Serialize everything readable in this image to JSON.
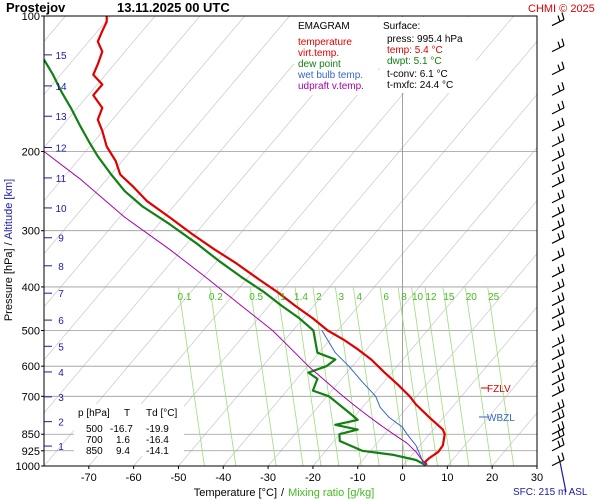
{
  "header": {
    "station": "Prostejov",
    "datetime": "13.11.2025 00 UTC",
    "credit": "CHMI © 2025"
  },
  "legend": {
    "title": "EMAGRAM",
    "items": [
      {
        "label": "temperature",
        "color": "#e00000"
      },
      {
        "label": "virt.temp.",
        "color": "#e00000"
      },
      {
        "label": "dew point",
        "color": "#128012"
      },
      {
        "label": "wet bulb temp.",
        "color": "#3366cc"
      },
      {
        "label": "udpraft v.temp.",
        "color": "#aa00aa"
      }
    ]
  },
  "surface": {
    "title": "Surface:",
    "press": "press: 995.4 hPa",
    "temp": "temp: 5.4 °C",
    "dwpt": "dwpt: 5.1 °C",
    "tconv": "t-conv: 6.1 °C",
    "tmxfc": "t-mxfc: 24.4 °C"
  },
  "levels_table": {
    "headers": [
      "p [hPa]",
      "T",
      "Td [°C]"
    ],
    "rows": [
      [
        "500",
        "-16.7",
        "-19.9"
      ],
      [
        "700",
        "1.6",
        "-16.4"
      ],
      [
        "850",
        "9.4",
        "-14.1"
      ]
    ]
  },
  "markers": {
    "fzlv": "FZLV",
    "wbzl": "WBZL",
    "sfc": "SFC: 215 m ASL"
  },
  "chart_data": {
    "type": "line",
    "xlabel": "Temperature [°C]",
    "xlabel_sep": "/",
    "xlabel2": "Mixing ratio [g/kg]",
    "ylabel": "Pressure [hPa]",
    "ylabel_sep": "/",
    "ylabel2": "Altitude [km]",
    "xlim": [
      -80,
      30
    ],
    "ylim": [
      1000,
      100
    ],
    "y_scale": "log",
    "x_ticks": [
      -70,
      -60,
      -50,
      -40,
      -30,
      -20,
      -10,
      0,
      10,
      20,
      30
    ],
    "y_ticks": [
      100,
      200,
      300,
      400,
      500,
      600,
      700,
      850,
      925,
      1000
    ],
    "altitude_ticks": [
      {
        "km": "1",
        "p": 903
      },
      {
        "km": "2",
        "p": 797
      },
      {
        "km": "3",
        "p": 702
      },
      {
        "km": "4",
        "p": 618
      },
      {
        "km": "5",
        "p": 542
      },
      {
        "km": "6",
        "p": 474
      },
      {
        "km": "7",
        "p": 413
      },
      {
        "km": "8",
        "p": 359
      },
      {
        "km": "9",
        "p": 311
      },
      {
        "km": "10",
        "p": 267
      },
      {
        "km": "11",
        "p": 229
      },
      {
        "km": "12",
        "p": 196
      },
      {
        "km": "13",
        "p": 167
      },
      {
        "km": "14",
        "p": 143
      },
      {
        "km": "15",
        "p": 122
      }
    ],
    "mixing_ratio_labels": [
      "0.1",
      "0.2",
      "0.5",
      "1",
      "1.4",
      "2",
      "3",
      "4",
      "6",
      "8",
      "10",
      "12",
      "15",
      "20",
      "25"
    ],
    "mixing_ratio_values": [
      0.1,
      0.2,
      0.5,
      1,
      1.4,
      2,
      3,
      4,
      6,
      8,
      10,
      12,
      15,
      20,
      25
    ],
    "grid": true,
    "series": [
      {
        "key": "temperature",
        "color": "#e00000",
        "points": [
          [
            5.4,
            995
          ],
          [
            5,
            980
          ],
          [
            6,
            960
          ],
          [
            8,
            930
          ],
          [
            9,
            900
          ],
          [
            9.4,
            850
          ],
          [
            9,
            830
          ],
          [
            6,
            780
          ],
          [
            3,
            730
          ],
          [
            1.6,
            700
          ],
          [
            -1,
            660
          ],
          [
            -4,
            620
          ],
          [
            -7,
            580
          ],
          [
            -10,
            550
          ],
          [
            -13,
            525
          ],
          [
            -16.7,
            500
          ],
          [
            -20,
            470
          ],
          [
            -24,
            440
          ],
          [
            -28,
            410
          ],
          [
            -32,
            385
          ],
          [
            -37,
            355
          ],
          [
            -42,
            330
          ],
          [
            -47,
            305
          ],
          [
            -52,
            280
          ],
          [
            -57,
            258
          ],
          [
            -60,
            240
          ],
          [
            -63,
            225
          ],
          [
            -64,
            210
          ],
          [
            -66,
            195
          ],
          [
            -67,
            180
          ],
          [
            -68,
            170
          ],
          [
            -67,
            160
          ],
          [
            -69,
            150
          ],
          [
            -67,
            142
          ],
          [
            -69,
            135
          ],
          [
            -68,
            128
          ],
          [
            -67,
            120
          ],
          [
            -68,
            114
          ],
          [
            -67,
            108
          ],
          [
            -66,
            103
          ],
          [
            -66,
            100
          ]
        ]
      },
      {
        "key": "dew_point",
        "color": "#128012",
        "points": [
          [
            5.1,
            995
          ],
          [
            3,
            970
          ],
          [
            -2,
            945
          ],
          [
            -9,
            925
          ],
          [
            -14,
            880
          ],
          [
            -14.1,
            850
          ],
          [
            -10,
            830
          ],
          [
            -15,
            810
          ],
          [
            -10,
            790
          ],
          [
            -12,
            760
          ],
          [
            -16.4,
            700
          ],
          [
            -20,
            680
          ],
          [
            -19,
            640
          ],
          [
            -21,
            620
          ],
          [
            -17,
            600
          ],
          [
            -15,
            580
          ],
          [
            -19,
            560
          ],
          [
            -19.9,
            500
          ],
          [
            -23,
            470
          ],
          [
            -27,
            440
          ],
          [
            -31,
            410
          ],
          [
            -36,
            380
          ],
          [
            -41,
            350
          ],
          [
            -46,
            320
          ],
          [
            -52,
            290
          ],
          [
            -58,
            265
          ],
          [
            -62,
            245
          ],
          [
            -65,
            225
          ],
          [
            -68,
            205
          ],
          [
            -70,
            190
          ],
          [
            -72,
            175
          ],
          [
            -74,
            160
          ],
          [
            -76,
            148
          ],
          [
            -78,
            135
          ],
          [
            -80,
            125
          ]
        ]
      },
      {
        "key": "wet_bulb",
        "color": "#3366cc",
        "points": [
          [
            5.2,
            995
          ],
          [
            4.5,
            980
          ],
          [
            4,
            950
          ],
          [
            3,
            900
          ],
          [
            1,
            850
          ],
          [
            0,
            820
          ],
          [
            -3,
            780
          ],
          [
            -5,
            740
          ],
          [
            -6,
            700
          ],
          [
            -9,
            650
          ],
          [
            -12,
            600
          ],
          [
            -15,
            560
          ],
          [
            -18,
            500
          ]
        ]
      },
      {
        "key": "updraft",
        "color": "#aa00aa",
        "points": [
          [
            5.4,
            995
          ],
          [
            4,
            960
          ],
          [
            3,
            930
          ],
          [
            1,
            890
          ],
          [
            -2,
            850
          ],
          [
            -5,
            810
          ],
          [
            -8,
            770
          ],
          [
            -11,
            730
          ],
          [
            -14,
            690
          ],
          [
            -17,
            650
          ],
          [
            -21,
            600
          ],
          [
            -24,
            560
          ],
          [
            -29,
            500
          ],
          [
            -36,
            440
          ],
          [
            -44,
            380
          ],
          [
            -52,
            330
          ],
          [
            -62,
            280
          ],
          [
            -72,
            230
          ],
          [
            -80,
            200
          ]
        ]
      }
    ],
    "wind_barbs_p": [
      998,
      925,
      880,
      850,
      800,
      760,
      700,
      660,
      620,
      580,
      545,
      500,
      470,
      440,
      410,
      380,
      350,
      320,
      300,
      280,
      260,
      240,
      225,
      210,
      195,
      180,
      165,
      150,
      135,
      120,
      105
    ]
  }
}
